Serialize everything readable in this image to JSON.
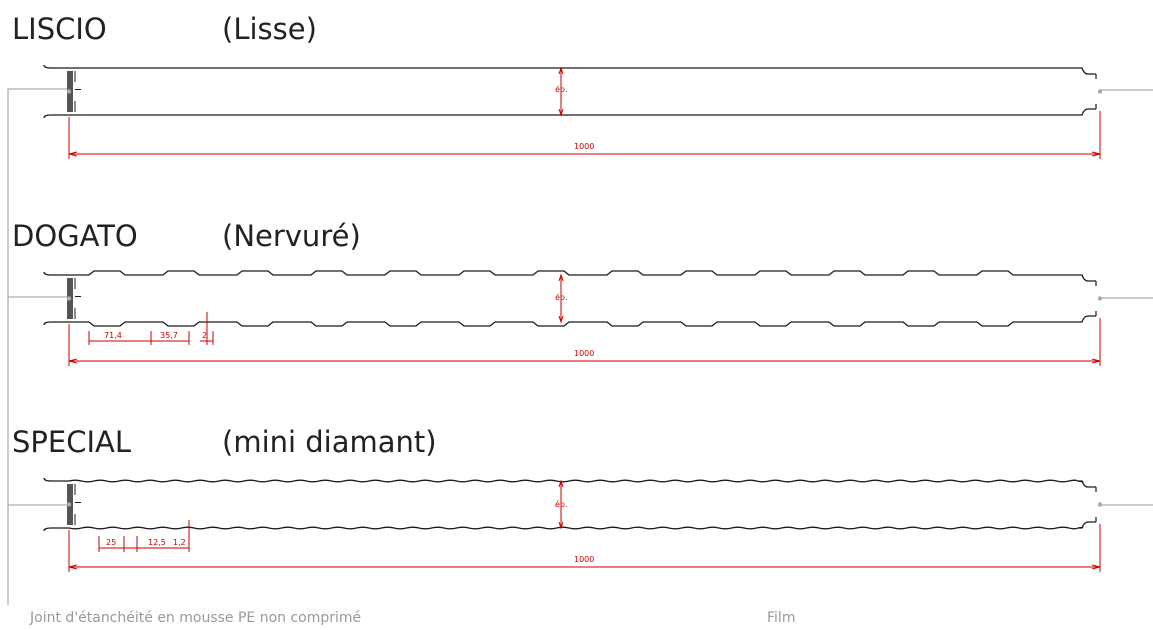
{
  "profiles": [
    {
      "id": "liscio",
      "name": "LISCIO",
      "subtitle": "(Lisse)",
      "surface": "flat",
      "thickness_label": "ép.",
      "width_label": "1000",
      "details": []
    },
    {
      "id": "dogato",
      "name": "DOGATO",
      "subtitle": "(Nervuré)",
      "surface": "ribbed",
      "thickness_label": "ép.",
      "width_label": "1000",
      "details": [
        "71,4",
        "35,7",
        "2"
      ]
    },
    {
      "id": "special",
      "name": "SPECIAL",
      "subtitle": "(mini diamant)",
      "surface": "mini-diamond",
      "thickness_label": "ép.",
      "width_label": "1000",
      "details": [
        "25",
        "12,5",
        "1,2"
      ]
    }
  ],
  "captions": {
    "seal": "Joint d'étanchéité en mousse PE non comprimé",
    "film": "Film"
  },
  "colors": {
    "panel_outline": "#1a1a1a",
    "dimension": "#cc0000",
    "leader": "#999999",
    "seal": "#555555",
    "title": "#222222",
    "caption": "#999999"
  }
}
